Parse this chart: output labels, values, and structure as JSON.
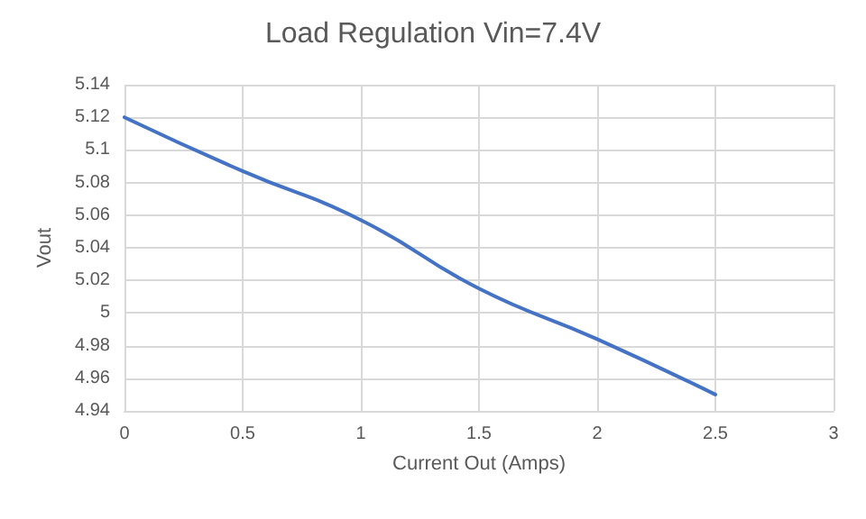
{
  "chart_data": {
    "type": "line",
    "title": "Load Regulation Vin=7.4V",
    "xlabel": "Current Out (Amps)",
    "ylabel": "Vout",
    "x": [
      0,
      0.5,
      1,
      1.5,
      2,
      2.5
    ],
    "series": [
      {
        "color": "#4472c4",
        "values": [
          5.12,
          5.087,
          5.057,
          5.015,
          4.984,
          4.95
        ]
      }
    ],
    "xlim": [
      0,
      3
    ],
    "xticks": [
      0,
      0.5,
      1,
      1.5,
      2,
      2.5,
      3
    ],
    "ylim": [
      4.94,
      5.14
    ],
    "yticks": [
      4.94,
      4.96,
      4.98,
      5,
      5.02,
      5.04,
      5.06,
      5.08,
      5.1,
      5.12,
      5.14
    ],
    "grid": true,
    "marker": "none",
    "line_style": "solid"
  }
}
